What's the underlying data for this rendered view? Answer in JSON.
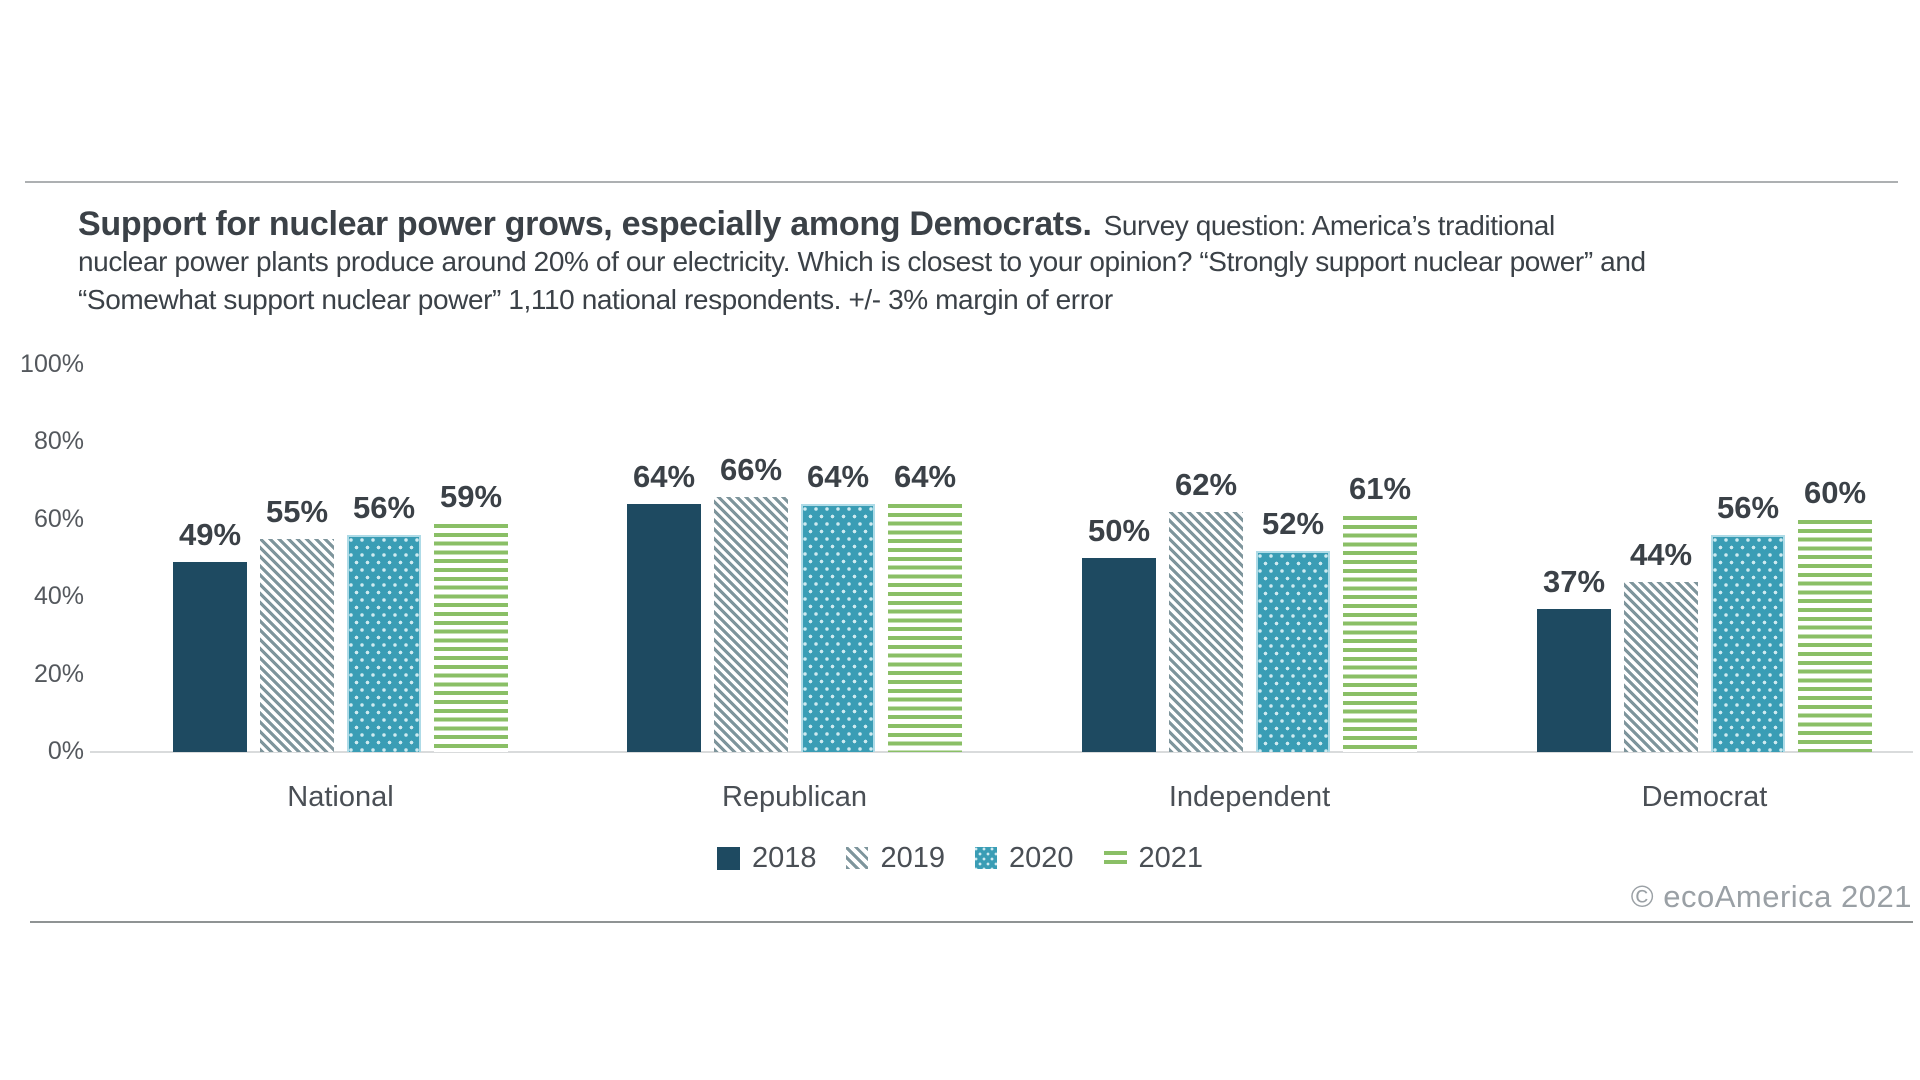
{
  "header": {
    "title": "Support for nuclear power grows, especially among Democrats.",
    "subtitle_line_1": "Survey question: America’s traditional",
    "subtitle_line_2": "nuclear power plants produce around 20% of our electricity. Which is closest to your opinion? “Strongly support nuclear power” and",
    "subtitle_line_3": "“Somewhat support nuclear power” 1,110 national respondents. +/- 3% margin of error"
  },
  "chart_data": {
    "type": "bar",
    "title": "Support for nuclear power grows, especially among Democrats.",
    "categories": [
      "National",
      "Republican",
      "Independent",
      "Democrat"
    ],
    "series": [
      {
        "name": "2018",
        "pattern": "solid",
        "values": [
          49,
          64,
          50,
          37
        ]
      },
      {
        "name": "2019",
        "pattern": "hatch",
        "values": [
          55,
          66,
          62,
          44
        ]
      },
      {
        "name": "2020",
        "pattern": "dots",
        "values": [
          56,
          64,
          52,
          56
        ]
      },
      {
        "name": "2021",
        "pattern": "stripes",
        "values": [
          59,
          64,
          61,
          60
        ]
      }
    ],
    "xlabel": "",
    "ylabel": "",
    "ylim": [
      0,
      100
    ],
    "yticks": [
      0,
      20,
      40,
      60,
      80,
      100
    ],
    "ytick_suffix": "%",
    "value_label_suffix": "%",
    "grid": false,
    "legend_position": "bottom-center"
  },
  "footer": {
    "credit": "© ecoAmerica 2021"
  },
  "palette": {
    "navy": "#1e4a61",
    "hatch": "#7e959c",
    "teal": "#3a9db5",
    "teal_dot": "#cfeaf0",
    "teal_border": "#aedbe7",
    "green": "#8abf66",
    "text": "#3b4147",
    "text_soft": "#4a4f55",
    "tick": "#54585d",
    "footer": "#9aa0a5",
    "rule_top": "#adb0b2",
    "rule_bottom": "#8f9394",
    "axis": "#d9dbdc"
  }
}
